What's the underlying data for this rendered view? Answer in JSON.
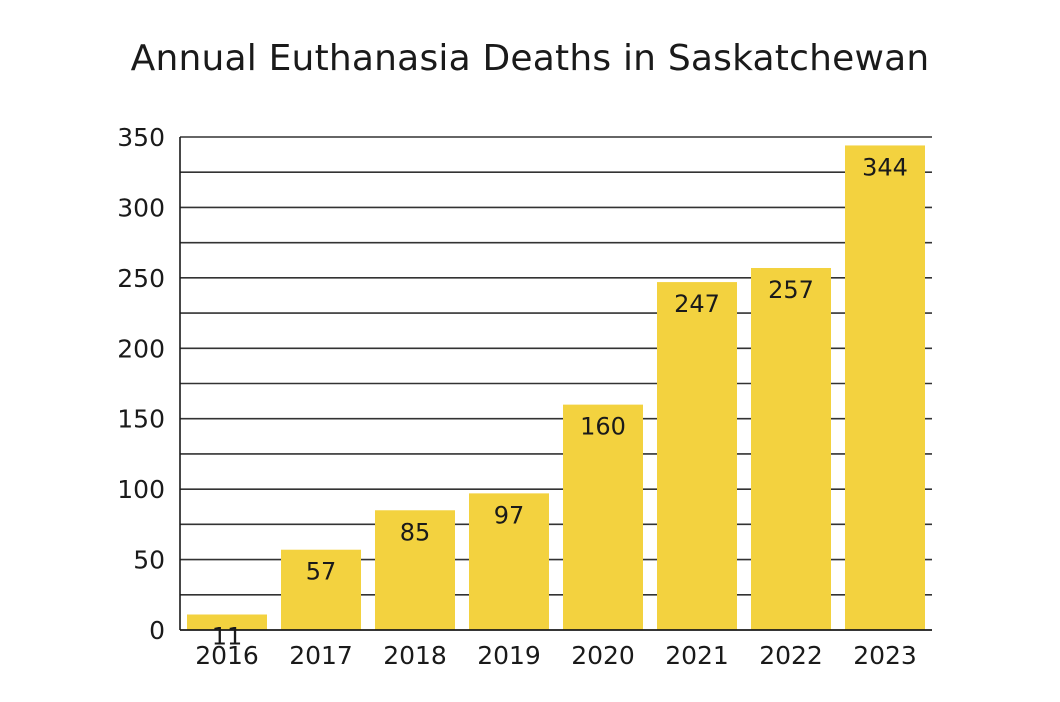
{
  "chart_data": {
    "type": "bar",
    "title": "Annual Euthanasia Deaths in Saskatchewan",
    "categories": [
      "2016",
      "2017",
      "2018",
      "2019",
      "2020",
      "2021",
      "2022",
      "2023"
    ],
    "values": [
      11,
      57,
      85,
      97,
      160,
      247,
      257,
      344
    ],
    "data_labels": [
      "11",
      "57",
      "85",
      "97",
      "160",
      "247",
      "257",
      "344"
    ],
    "xlabel": "",
    "ylabel": "",
    "ylim": [
      0,
      350
    ],
    "y_ticks": [
      0,
      50,
      100,
      150,
      200,
      250,
      300,
      350
    ],
    "minor_gridlines_every": 25,
    "grid": true,
    "legend": "none",
    "bar_color": "#f3d23f",
    "grid_color": "#333333"
  }
}
